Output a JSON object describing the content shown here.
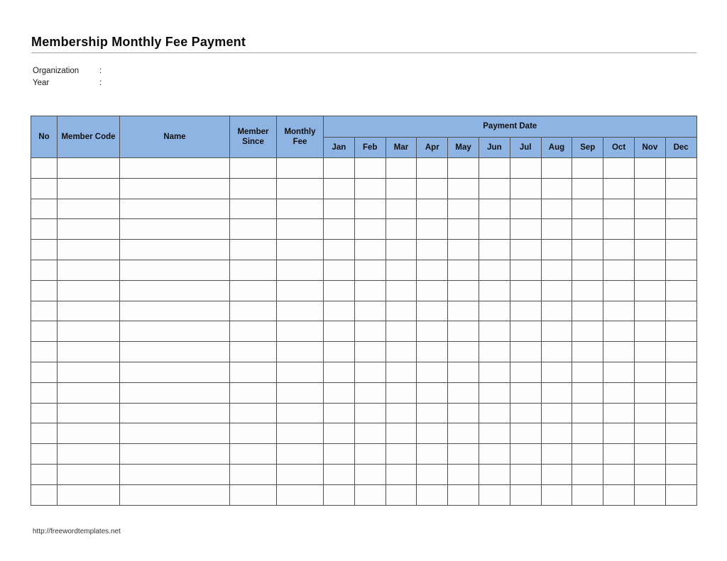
{
  "page": {
    "title": "Membership Monthly Fee Payment",
    "footer_url": "http://freewordtemplates.net"
  },
  "fields": {
    "organization_label": "Organization",
    "organization_separator": ":",
    "organization_value": "",
    "year_label": "Year",
    "year_separator": ":",
    "year_value": ""
  },
  "table": {
    "columns": [
      {
        "key": "no",
        "label": "No"
      },
      {
        "key": "member-code",
        "label": "Member Code"
      },
      {
        "key": "name",
        "label": "Name"
      },
      {
        "key": "member-since",
        "label": "Member Since"
      },
      {
        "key": "monthly-fee",
        "label": "Monthly Fee"
      }
    ],
    "payment_date_label": "Payment Date",
    "months": [
      "Jan",
      "Feb",
      "Mar",
      "Apr",
      "May",
      "Jun",
      "Jul",
      "Aug",
      "Sep",
      "Oct",
      "Nov",
      "Dec"
    ],
    "body_row_count": 17,
    "body_cell_value": ""
  },
  "colors": {
    "header_fill": "#8db4e2",
    "grid_line": "#4f4f4f",
    "title_rule": "#a0a0a0"
  }
}
